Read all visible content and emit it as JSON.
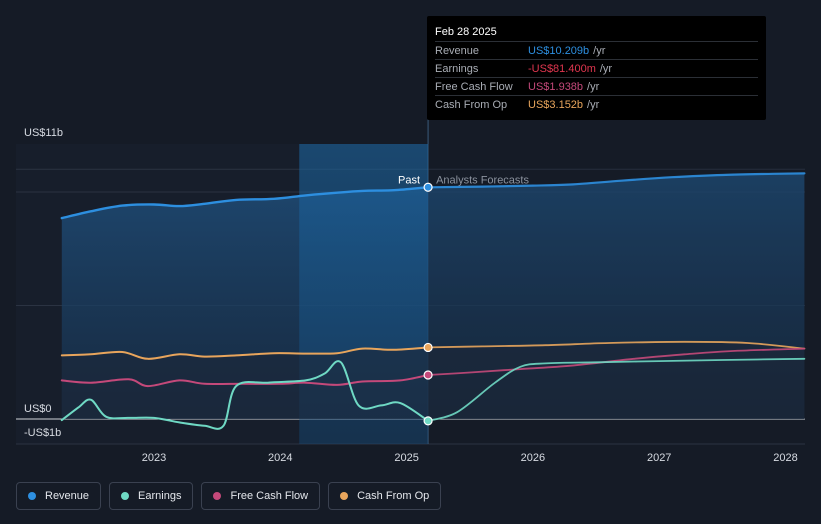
{
  "chart_data": {
    "type": "line",
    "title": "",
    "xlabel": "",
    "ylabel": "",
    "x_ticks": [
      "2023",
      "2024",
      "2025",
      "2026",
      "2027",
      "2028"
    ],
    "y_tick_labels": [
      {
        "label": "US$11b",
        "value": 11
      },
      {
        "label": "US$0",
        "value": 0
      },
      {
        "label": "-US$1b",
        "value": -1
      }
    ],
    "ylim": [
      -1,
      11
    ],
    "xlim": [
      2022.25,
      2028.15
    ],
    "past_label": "Past",
    "forecast_label": "Analysts Forecasts",
    "divider_x": 2025.17,
    "highlight_range": [
      2024.15,
      2025.17
    ],
    "legend_position": "bottom-left",
    "series": [
      {
        "name": "Revenue",
        "color": "#2d8fe0",
        "points": [
          [
            2022.27,
            8.85
          ],
          [
            2022.5,
            9.15
          ],
          [
            2022.75,
            9.4
          ],
          [
            2023.0,
            9.45
          ],
          [
            2023.2,
            9.38
          ],
          [
            2023.4,
            9.48
          ],
          [
            2023.65,
            9.65
          ],
          [
            2023.95,
            9.7
          ],
          [
            2024.2,
            9.85
          ],
          [
            2024.45,
            9.97
          ],
          [
            2024.65,
            10.05
          ],
          [
            2024.9,
            10.08
          ],
          [
            2025.17,
            10.209
          ]
        ],
        "forecast": [
          [
            2025.17,
            10.209
          ],
          [
            2025.6,
            10.24
          ],
          [
            2026.0,
            10.28
          ],
          [
            2026.3,
            10.33
          ],
          [
            2026.7,
            10.5
          ],
          [
            2027.1,
            10.65
          ],
          [
            2027.5,
            10.75
          ],
          [
            2027.9,
            10.8
          ],
          [
            2028.15,
            10.82
          ]
        ]
      },
      {
        "name": "Earnings",
        "color": "#6fd9c4",
        "points": [
          [
            2022.27,
            -0.05
          ],
          [
            2022.4,
            0.5
          ],
          [
            2022.5,
            0.85
          ],
          [
            2022.62,
            0.1
          ],
          [
            2022.8,
            0.05
          ],
          [
            2023.0,
            0.05
          ],
          [
            2023.2,
            -0.15
          ],
          [
            2023.4,
            -0.3
          ],
          [
            2023.55,
            -0.3
          ],
          [
            2023.65,
            1.45
          ],
          [
            2023.9,
            1.6
          ],
          [
            2024.2,
            1.7
          ],
          [
            2024.35,
            2.0
          ],
          [
            2024.48,
            2.5
          ],
          [
            2024.62,
            0.6
          ],
          [
            2024.8,
            0.6
          ],
          [
            2024.95,
            0.7
          ],
          [
            2025.17,
            -0.0814
          ]
        ],
        "forecast": [
          [
            2025.17,
            -0.0814
          ],
          [
            2025.4,
            0.3
          ],
          [
            2025.7,
            1.6
          ],
          [
            2025.9,
            2.3
          ],
          [
            2026.1,
            2.45
          ],
          [
            2026.5,
            2.5
          ],
          [
            2027.0,
            2.55
          ],
          [
            2027.5,
            2.6
          ],
          [
            2028.15,
            2.65
          ]
        ]
      },
      {
        "name": "Free Cash Flow",
        "color": "#c4497a",
        "points": [
          [
            2022.27,
            1.7
          ],
          [
            2022.5,
            1.6
          ],
          [
            2022.8,
            1.75
          ],
          [
            2022.95,
            1.45
          ],
          [
            2023.2,
            1.7
          ],
          [
            2023.4,
            1.55
          ],
          [
            2023.7,
            1.55
          ],
          [
            2024.0,
            1.55
          ],
          [
            2024.2,
            1.6
          ],
          [
            2024.45,
            1.5
          ],
          [
            2024.65,
            1.65
          ],
          [
            2024.95,
            1.7
          ],
          [
            2025.17,
            1.938
          ]
        ],
        "forecast": [
          [
            2025.17,
            1.938
          ],
          [
            2025.5,
            2.05
          ],
          [
            2025.9,
            2.2
          ],
          [
            2026.3,
            2.35
          ],
          [
            2026.8,
            2.65
          ],
          [
            2027.2,
            2.85
          ],
          [
            2027.6,
            3.0
          ],
          [
            2028.15,
            3.1
          ]
        ]
      },
      {
        "name": "Cash From Op",
        "color": "#e8a55c",
        "points": [
          [
            2022.27,
            2.8
          ],
          [
            2022.5,
            2.85
          ],
          [
            2022.75,
            2.95
          ],
          [
            2022.95,
            2.65
          ],
          [
            2023.2,
            2.85
          ],
          [
            2023.4,
            2.75
          ],
          [
            2023.65,
            2.8
          ],
          [
            2023.95,
            2.9
          ],
          [
            2024.2,
            2.88
          ],
          [
            2024.45,
            2.9
          ],
          [
            2024.65,
            3.1
          ],
          [
            2024.9,
            3.05
          ],
          [
            2025.17,
            3.152
          ]
        ],
        "forecast": [
          [
            2025.17,
            3.152
          ],
          [
            2025.6,
            3.2
          ],
          [
            2026.1,
            3.25
          ],
          [
            2026.6,
            3.35
          ],
          [
            2027.2,
            3.4
          ],
          [
            2027.7,
            3.35
          ],
          [
            2028.15,
            3.1
          ]
        ]
      }
    ]
  },
  "tooltip": {
    "date": "Feb 28 2025",
    "rows": [
      {
        "label": "Revenue",
        "value": "US$10.209b",
        "unit": "/yr",
        "color": "#2d8fe0"
      },
      {
        "label": "Earnings",
        "value": "-US$81.400m",
        "unit": "/yr",
        "color": "#e0364f"
      },
      {
        "label": "Free Cash Flow",
        "value": "US$1.938b",
        "unit": "/yr",
        "color": "#c4497a"
      },
      {
        "label": "Cash From Op",
        "value": "US$3.152b",
        "unit": "/yr",
        "color": "#e8a55c"
      }
    ]
  },
  "legend": [
    {
      "label": "Revenue",
      "color": "#2d8fe0"
    },
    {
      "label": "Earnings",
      "color": "#6fd9c4"
    },
    {
      "label": "Free Cash Flow",
      "color": "#c4497a"
    },
    {
      "label": "Cash From Op",
      "color": "#e8a55c"
    }
  ]
}
